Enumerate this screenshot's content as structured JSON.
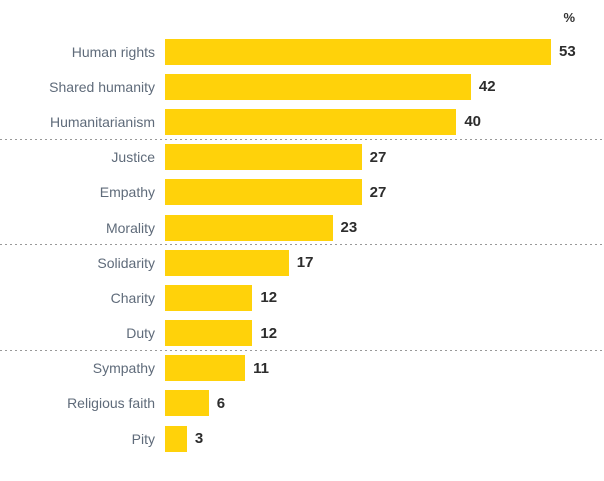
{
  "chart_data": {
    "type": "bar",
    "orientation": "horizontal",
    "title": "",
    "unit_label": "%",
    "xlabel": "",
    "ylabel": "",
    "categories": [
      "Human rights",
      "Shared humanity",
      "Humanitarianism",
      "Justice",
      "Empathy",
      "Morality",
      "Solidarity",
      "Charity",
      "Duty",
      "Sympathy",
      "Religious faith",
      "Pity"
    ],
    "values": [
      53,
      42,
      40,
      27,
      27,
      23,
      17,
      12,
      12,
      11,
      6,
      3
    ],
    "group_size": 3,
    "xlim": [
      0,
      53
    ],
    "grid": false,
    "legend": "none",
    "value_labels": "right of bar end",
    "bar_color": "#FFD20A",
    "label_color": "#5F6B7A",
    "value_color": "#2D2D2D",
    "separator_color": "#999999",
    "separator_style": "dashed, full width, between groups of three bars"
  }
}
